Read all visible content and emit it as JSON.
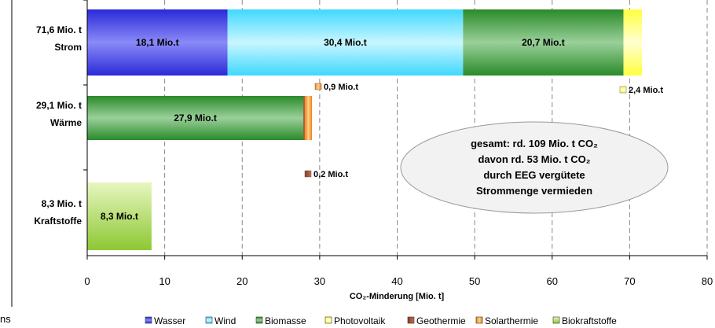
{
  "chart_data": {
    "type": "bar",
    "orientation": "horizontal",
    "stacked": true,
    "xlabel": "CO₂-Minderung  [Mio. t]",
    "xlim": [
      0,
      80
    ],
    "xticks": [
      0,
      10,
      20,
      30,
      40,
      50,
      60,
      70,
      80
    ],
    "grid": "vertical dashed",
    "legend_position": "bottom",
    "categories": [
      {
        "name": "Strom",
        "total_label": "71,6 Mio. t"
      },
      {
        "name": "Wärme",
        "total_label": "29,1 Mio. t"
      },
      {
        "name": "Kraftstoffe",
        "total_label": "8,3 Mio. t"
      }
    ],
    "series": [
      {
        "name": "Wasser",
        "color": "#4a4ae8",
        "values": [
          18.1,
          0,
          0
        ],
        "labels": [
          "18,1 Mio.t",
          "",
          ""
        ]
      },
      {
        "name": "Wind",
        "color": "#66e0ff",
        "values": [
          30.4,
          0,
          0
        ],
        "labels": [
          "30,4 Mio.t",
          "",
          ""
        ]
      },
      {
        "name": "Biomasse",
        "color": "#3a9a3a",
        "values": [
          20.7,
          27.9,
          0
        ],
        "labels": [
          "20,7 Mio.t",
          "27,9 Mio.t",
          ""
        ]
      },
      {
        "name": "Photovoltaik",
        "color": "#ffff66",
        "values": [
          2.4,
          0,
          0
        ],
        "labels": [
          "",
          "",
          ""
        ]
      },
      {
        "name": "Geothermie",
        "color": "#b05a3a",
        "values": [
          0,
          0.2,
          0
        ],
        "labels": [
          "",
          "",
          ""
        ]
      },
      {
        "name": "Solarthermie",
        "color": "#f7a030",
        "values": [
          0,
          0.9,
          0
        ],
        "labels": [
          "",
          "",
          ""
        ]
      },
      {
        "name": "Biokraftstoffe",
        "color": "#a6d64a",
        "values": [
          0,
          0,
          8.3
        ],
        "labels": [
          "",
          "",
          "8,3 Mio.t"
        ]
      }
    ],
    "callouts": [
      {
        "label": "0,9 Mio.t",
        "series": "Solarthermie"
      },
      {
        "label": "2,4 Mio.t",
        "series": "Photovoltaik"
      },
      {
        "label": "0,2 Mio.t",
        "series": "Geothermie"
      }
    ],
    "annotation_box": {
      "line1": "gesamt: rd. 109 Mio. t CO₂",
      "line2": "davon rd. 53 Mio. t  CO₂",
      "line3": "durch EEG vergütete",
      "line4": "Strommenge vermieden"
    }
  },
  "side_fragment": "ns"
}
